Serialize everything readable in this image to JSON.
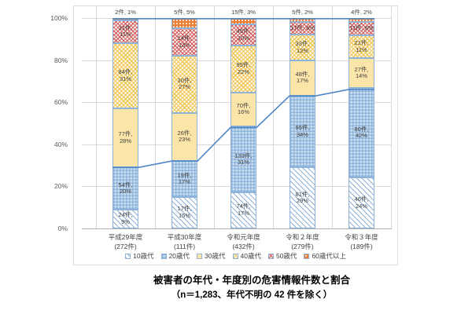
{
  "caption": {
    "line1": "被害者の年代・年度別の危害情報件数と割合",
    "line2": "（n＝1,283、年代不明の 42 件を除く）"
  },
  "colors": {
    "line_blue": "#4e86c8",
    "segment_border": "#8fb2d8",
    "gridline": "#d9d9d9",
    "axis_line": "#b0b0b0",
    "orange": "#ed7d31",
    "cream": "#fbe5a8",
    "light_blue_fill": "#c9def1",
    "red_hatch": "#d0524e",
    "yellow_hatch": "#eec14a"
  },
  "chart_data": {
    "type": "bar",
    "stacked_percent": true,
    "title": "被害者の年代・年度別の危害情報件数と割合",
    "subtitle": "（n＝1,283、年代不明の 42 件を除く）",
    "grid": true,
    "legend_position": "bottom",
    "ylim": [
      0,
      100
    ],
    "y_ticks": [
      "0%",
      "20%",
      "40%",
      "60%",
      "80%",
      "100%"
    ],
    "categories": [
      {
        "label": "平成29年度",
        "sublabel": "(272件)",
        "total": 272
      },
      {
        "label": "平成30年度",
        "sublabel": "(111件)",
        "total": 111
      },
      {
        "label": "令和元年度",
        "sublabel": "(432件)",
        "total": 432
      },
      {
        "label": "令和２年度",
        "sublabel": "(279件)",
        "total": 279
      },
      {
        "label": "令和３年度",
        "sublabel": "(189件)",
        "total": 189
      }
    ],
    "series": [
      {
        "name": "10歳代",
        "pattern": "diag-blue",
        "values": [
          24,
          17,
          74,
          81,
          46
        ],
        "pct": [
          9,
          15,
          17,
          29,
          24
        ],
        "labels": [
          "24件, 9%",
          "17件, 15%",
          "74件, 17%",
          "81件, 29%",
          "46件, 24%"
        ]
      },
      {
        "name": "20歳代",
        "pattern": "check-blue",
        "values": [
          54,
          19,
          133,
          95,
          80
        ],
        "pct": [
          20,
          17,
          31,
          34,
          42
        ],
        "labels": [
          "54件, 20%",
          "19件, 17%",
          "133件, 31%",
          "95件, 34%",
          "80件, 42%"
        ]
      },
      {
        "name": "30歳代",
        "pattern": "solid-cream",
        "values": [
          77,
          26,
          70,
          48,
          27
        ],
        "pct": [
          28,
          23,
          16,
          17,
          14
        ],
        "labels": [
          "77件, 28%",
          "26件, 23%",
          "70件, 16%",
          "48件, 17%",
          "27件, 14%"
        ]
      },
      {
        "name": "40歳代",
        "pattern": "wave-yellow",
        "values": [
          84,
          30,
          95,
          33,
          21
        ],
        "pct": [
          31,
          27,
          22,
          12,
          11
        ],
        "labels": [
          "84件, 31%",
          "30件, 27%",
          "95件, 22%",
          "33件, 12%",
          "21件, 11%"
        ]
      },
      {
        "name": "50歳代",
        "pattern": "cross-red",
        "values": [
          31,
          14,
          45,
          17,
          11
        ],
        "pct": [
          11,
          13,
          10,
          6,
          6
        ],
        "labels": [
          "31件, 11%",
          "14件, 13%",
          "45件, 10%",
          "17件, 6%",
          "11件, 6%"
        ]
      },
      {
        "name": "60歳代以上",
        "pattern": "dot-orange",
        "values": [
          2,
          5,
          15,
          5,
          4
        ],
        "pct": [
          1,
          5,
          3,
          2,
          2
        ],
        "labels": [
          "2件, 1%",
          "5件, 5%",
          "15件, 3%",
          "5件, 2%",
          "4件, 2%"
        ]
      }
    ],
    "line_overlay": {
      "name": "10歳代＋20歳代累積割合",
      "cumulative_pct": [
        29,
        32,
        48,
        63,
        66
      ],
      "top_line_pct": 100
    },
    "legend": [
      "10歳代",
      "20歳代",
      "30歳代",
      "40歳代",
      "50歳代",
      "60歳代以上"
    ]
  }
}
